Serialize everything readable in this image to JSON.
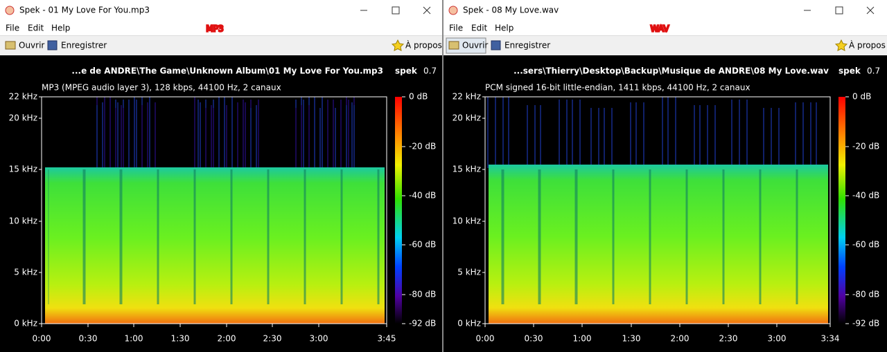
{
  "annotations": [
    "MP3",
    "WAV"
  ],
  "windows": [
    {
      "title": "Spek - 01 My Love For You.mp3",
      "menu": [
        "File",
        "Edit",
        "Help"
      ],
      "toolbar": {
        "open": "Ouvrir",
        "save": "Enregistrer",
        "about": "À propos"
      },
      "file_path": "...e de ANDRE\\The Game\\Unknown Album\\01 My Love For You.mp3",
      "app": "spek",
      "version": "0.7",
      "info": "MP3 (MPEG audio layer 3), 128 kbps, 44100 Hz, 2 canaux",
      "freq_ticks": [
        "22 kHz",
        "20 kHz",
        "15 kHz",
        "10 kHz",
        "5 kHz",
        "0 kHz"
      ],
      "db_ticks": [
        "0 dB",
        "-20 dB",
        "-40 dB",
        "-60 dB",
        "-80 dB",
        "-92 dB"
      ],
      "time_ticks": [
        "0:00",
        "0:30",
        "1:00",
        "1:30",
        "2:00",
        "2:30",
        "3:00",
        "3:45"
      ]
    },
    {
      "title": "Spek - 08 My Love.wav",
      "menu": [
        "File",
        "Edit",
        "Help"
      ],
      "toolbar": {
        "open": "Ouvrir",
        "save": "Enregistrer",
        "about": "À propos"
      },
      "file_path": "...sers\\Thierry\\Desktop\\Backup\\Musique de ANDRE\\08 My Love.wav",
      "app": "spek",
      "version": "0.7",
      "info": "PCM signed 16-bit little-endian, 1411 kbps, 44100 Hz, 2 canaux",
      "freq_ticks": [
        "22 kHz",
        "20 kHz",
        "15 kHz",
        "10 kHz",
        "5 kHz",
        "0 kHz"
      ],
      "db_ticks": [
        "0 dB",
        "-20 dB",
        "-40 dB",
        "-60 dB",
        "-80 dB",
        "-92 dB"
      ],
      "time_ticks": [
        "0:00",
        "0:30",
        "1:00",
        "1:30",
        "2:00",
        "2:30",
        "3:00",
        "3:34"
      ]
    }
  ]
}
